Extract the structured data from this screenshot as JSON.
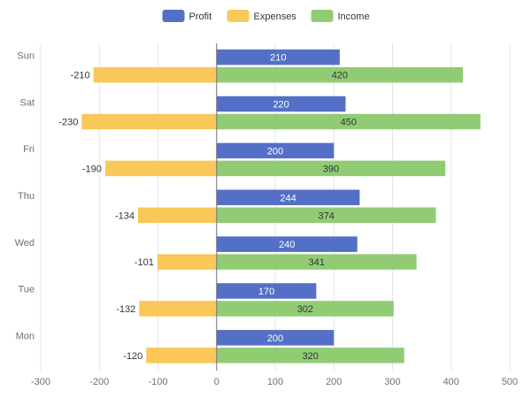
{
  "chart_data": {
    "type": "bar",
    "orientation": "horizontal",
    "categories": [
      "Mon",
      "Tue",
      "Wed",
      "Thu",
      "Fri",
      "Sat",
      "Sun"
    ],
    "series": [
      {
        "name": "Profit",
        "color": "#5470c6",
        "values": [
          200,
          170,
          240,
          244,
          200,
          220,
          210
        ]
      },
      {
        "name": "Expenses",
        "color": "#fac858",
        "values": [
          -120,
          -132,
          -101,
          -134,
          -190,
          -230,
          -210
        ]
      },
      {
        "name": "Income",
        "color": "#91cc75",
        "values": [
          320,
          302,
          341,
          374,
          390,
          450,
          420
        ]
      }
    ],
    "xlim": [
      -300,
      500
    ],
    "x_ticks": [
      -300,
      -200,
      -100,
      0,
      100,
      200,
      300,
      400,
      500
    ],
    "grid": "vertical",
    "legend": "top-center",
    "data_labels": true
  }
}
